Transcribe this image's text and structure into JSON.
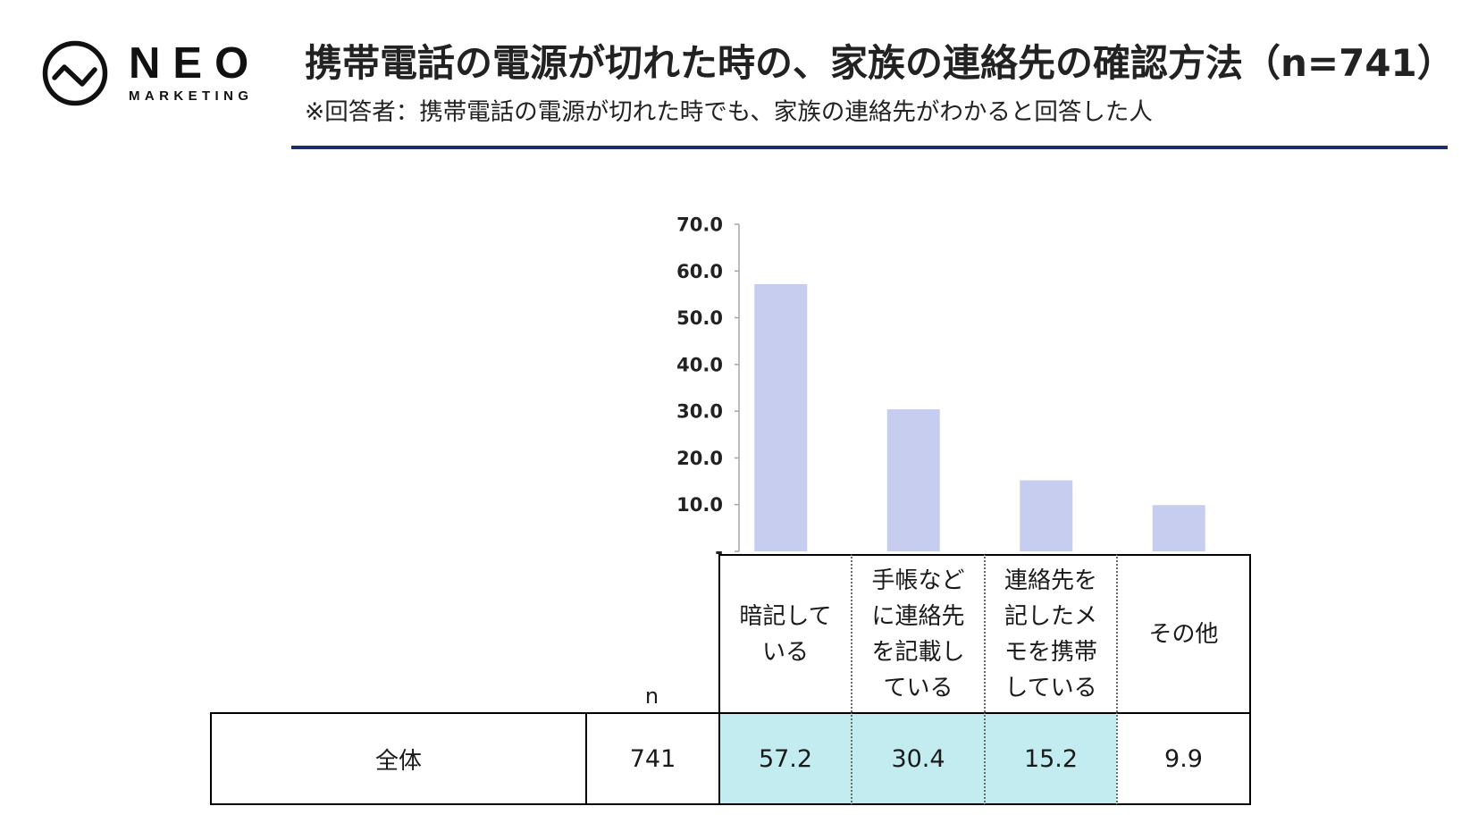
{
  "brand": {
    "name": "NEO",
    "tagline": "MARKETING"
  },
  "header": {
    "title": "携帯電話の電源が切れた時の、家族の連絡先の確認方法（n=741）",
    "subtitle": "※回答者：携帯電話の電源が切れた時でも、家族の連絡先がわかると回答した人"
  },
  "colors": {
    "rule": "#1f2c6b",
    "bar": "#c6cdef",
    "highlight": "#c3ecf1"
  },
  "chart_data": {
    "type": "bar",
    "categories": [
      "暗記している",
      "手帳などに連絡先を記載している",
      "連絡先を記したメモを携帯している",
      "その他"
    ],
    "values": [
      57.2,
      30.4,
      15.2,
      9.9
    ],
    "ylim": [
      0,
      70
    ],
    "yticks": [
      0,
      10,
      20,
      30,
      40,
      50,
      60,
      70
    ],
    "ytick_labels": [
      "-",
      "10.0",
      "20.0",
      "30.0",
      "40.0",
      "50.0",
      "60.0",
      "70.0"
    ],
    "grid": false,
    "legend": false
  },
  "table": {
    "n_label": "n",
    "rows": [
      {
        "label": "全体",
        "n": "741",
        "values": [
          "57.2",
          "30.4",
          "15.2",
          "9.9"
        ],
        "highlight": [
          true,
          true,
          true,
          false
        ]
      }
    ]
  }
}
